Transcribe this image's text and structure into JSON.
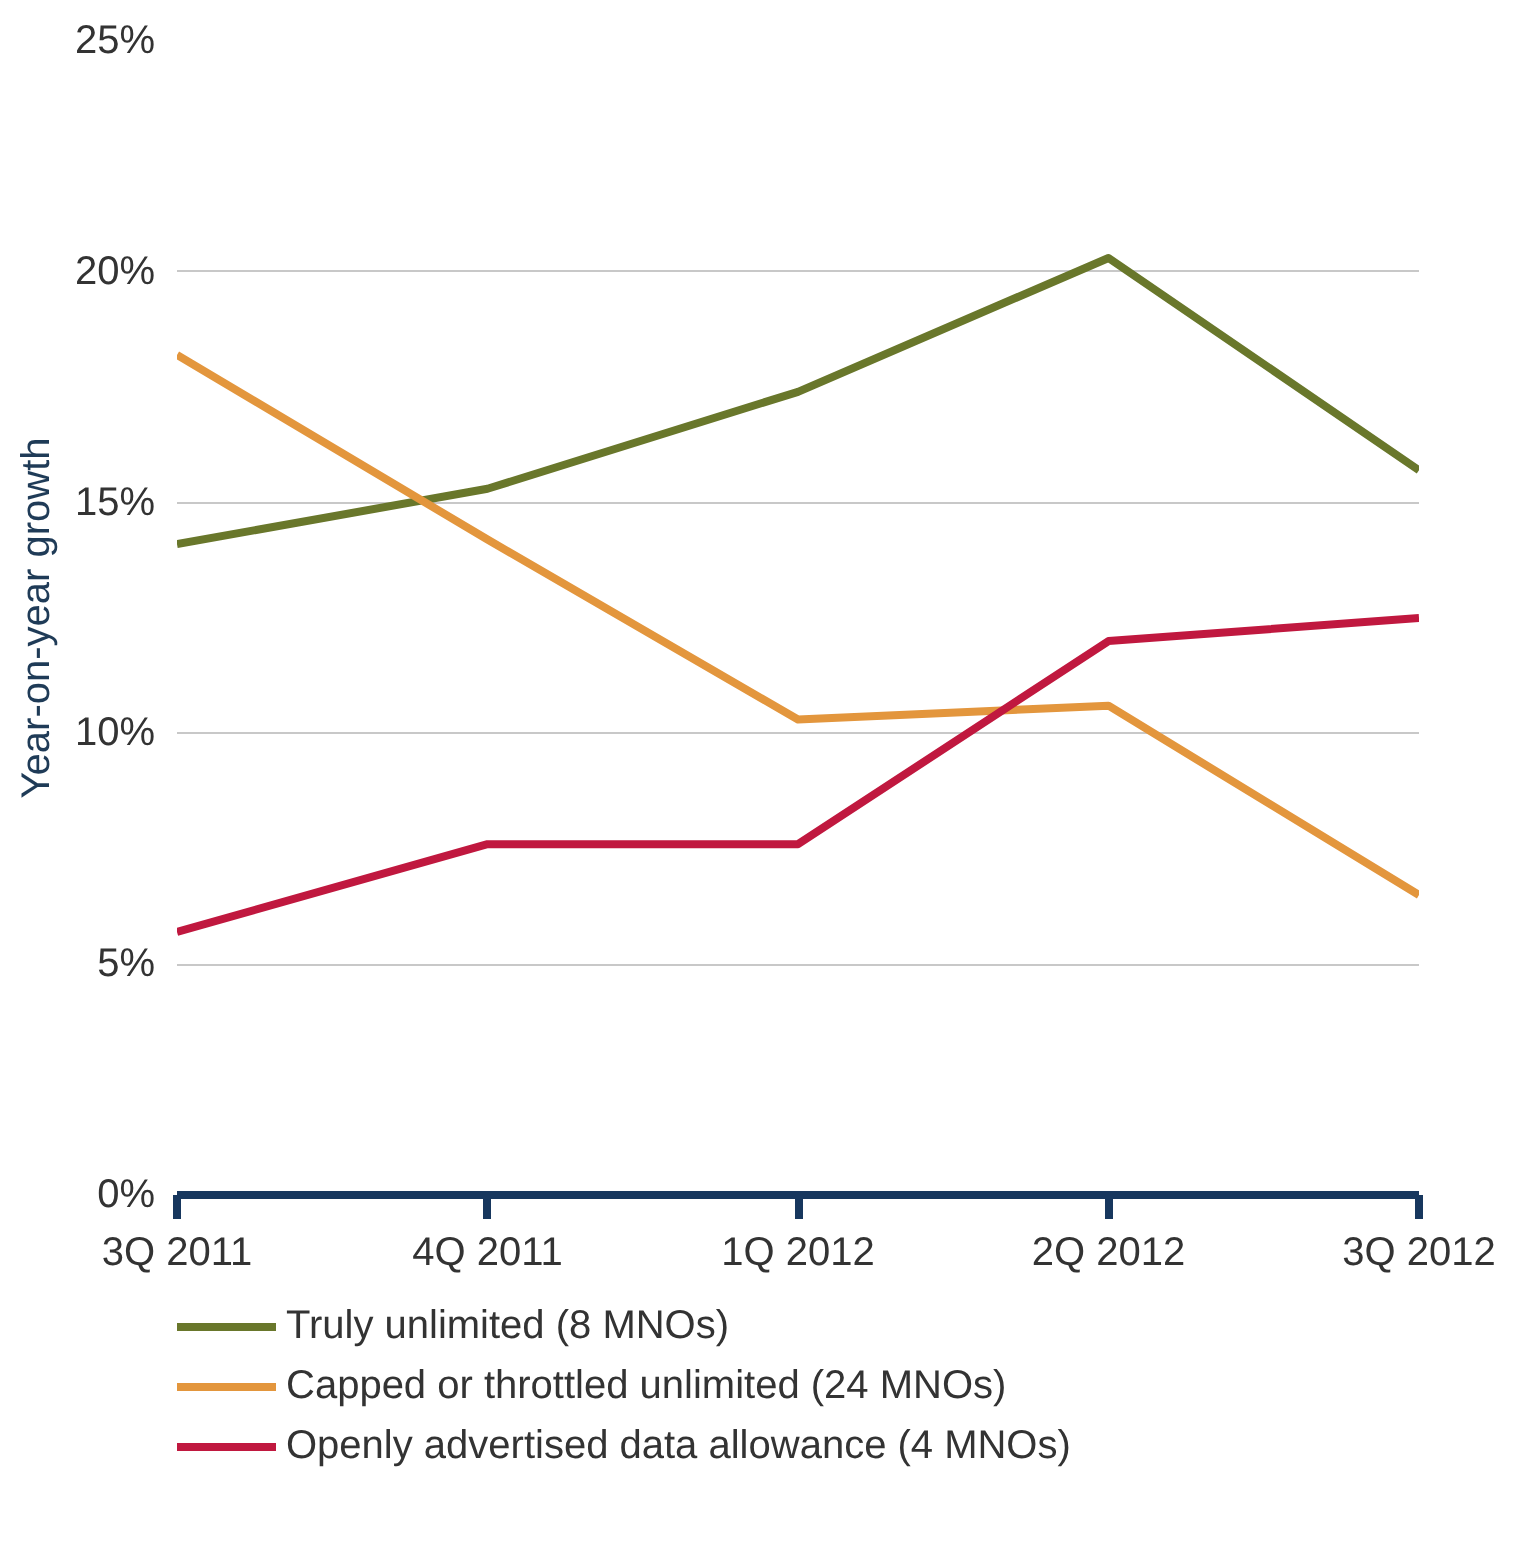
{
  "chart_data": {
    "type": "line",
    "ylabel": "Year-on-year growth",
    "categories": [
      "3Q 2011",
      "4Q 2011",
      "1Q 2012",
      "2Q 2012",
      "3Q 2012"
    ],
    "series": [
      {
        "name": "Truly unlimited (8 MNOs)",
        "color": "#69772b",
        "values": [
          14.1,
          15.3,
          17.4,
          20.3,
          15.7
        ]
      },
      {
        "name": "Capped or throttled unlimited (24 MNOs)",
        "color": "#e3963d",
        "values": [
          18.2,
          14.2,
          10.3,
          10.6,
          6.5
        ]
      },
      {
        "name": "Openly advertised data allowance (4 MNOs)",
        "color": "#c0183f",
        "values": [
          5.7,
          7.6,
          7.6,
          12.0,
          12.5
        ]
      }
    ],
    "ylim": [
      0,
      25
    ],
    "yticks": [
      {
        "value": 0,
        "label": "0%"
      },
      {
        "value": 5,
        "label": "5%"
      },
      {
        "value": 10,
        "label": "10%"
      },
      {
        "value": 15,
        "label": "15%"
      },
      {
        "value": 20,
        "label": "20%"
      },
      {
        "value": 25,
        "label": "25%"
      }
    ],
    "grid": "y",
    "legend": "bottom",
    "marker": "none",
    "line_style": "solid"
  }
}
